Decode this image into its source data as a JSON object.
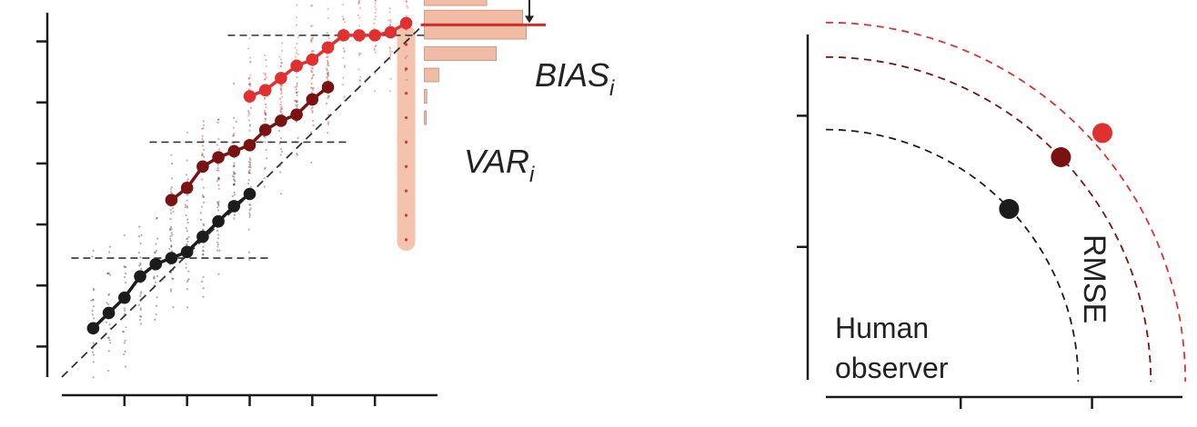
{
  "colors": {
    "axis": "#1a1a1a",
    "diagonal": "#333333",
    "black_series": "#1c1c1c",
    "dark_red_series": "#7a1212",
    "red_series": "#e03030",
    "highlight": "#f3c3ad",
    "histogram": "#f2bba3",
    "mean_line": "#d42a2a"
  },
  "labels": {
    "bias": "BIAS",
    "bias_sub": "i",
    "var": "VAR",
    "var_sub": "i",
    "rmse": "RMSE",
    "human_line1": "Human",
    "human_line2": "observer"
  },
  "chart_data": [
    {
      "type": "scatter",
      "title": "",
      "xlabel": "",
      "ylabel": "",
      "xlim": [
        0,
        12
      ],
      "ylim": [
        0,
        12
      ],
      "grid": false,
      "legend": "none",
      "identity_line": true,
      "series": [
        {
          "color": "#1c1c1c",
          "x": [
            1,
            1.5,
            2,
            2.5,
            3,
            3.5,
            4,
            4.5,
            5,
            5.5,
            6
          ],
          "y": [
            1.6,
            2.1,
            2.6,
            3.3,
            3.7,
            3.9,
            4.1,
            4.6,
            5.1,
            5.6,
            6.0
          ],
          "reference_level": 3.9
        },
        {
          "color": "#7a1212",
          "x": [
            3.5,
            4,
            4.5,
            5,
            5.5,
            6,
            6.5,
            7,
            7.5,
            8,
            8.5
          ],
          "y": [
            5.8,
            6.2,
            6.9,
            7.2,
            7.4,
            7.6,
            8.1,
            8.4,
            8.6,
            9.1,
            9.5
          ],
          "reference_level": 7.7
        },
        {
          "color": "#e03030",
          "x": [
            6,
            6.5,
            7,
            7.5,
            8,
            8.5,
            9,
            9.5,
            10,
            10.5,
            11
          ],
          "y": [
            9.2,
            9.4,
            9.8,
            10.2,
            10.4,
            10.8,
            11.2,
            11.2,
            11.2,
            11.3,
            11.6
          ],
          "reference_level": 11.2
        }
      ],
      "highlighted_x": 11,
      "histogram": {
        "bin_centers": [
          13.8,
          13.1,
          12.4,
          11.8,
          11.3,
          10.6,
          9.9,
          9.2,
          8.5
        ],
        "counts": [
          0.03,
          0.15,
          0.52,
          0.82,
          0.85,
          0.6,
          0.12,
          0.02,
          0.01
        ],
        "mean": 11.6
      }
    },
    {
      "type": "scatter",
      "title": "",
      "xlabel": "",
      "ylabel": "",
      "xlim": [
        0,
        10
      ],
      "ylim": [
        0,
        10
      ],
      "grid": false,
      "legend": "none",
      "points": [
        {
          "series": "Human observer",
          "x": 5.3,
          "y": 5.0,
          "color": "#1c1c1c"
        },
        {
          "x": 6.8,
          "y": 6.5,
          "color": "#7a1212"
        },
        {
          "x": 8.0,
          "y": 7.2,
          "color": "#e03030"
        }
      ],
      "rmse_arcs": [
        {
          "radius": 7.3,
          "color": "#1c1c1c"
        },
        {
          "radius": 9.4,
          "color": "#7a1212"
        },
        {
          "radius": 10.4,
          "color": "#e03030"
        }
      ]
    }
  ]
}
